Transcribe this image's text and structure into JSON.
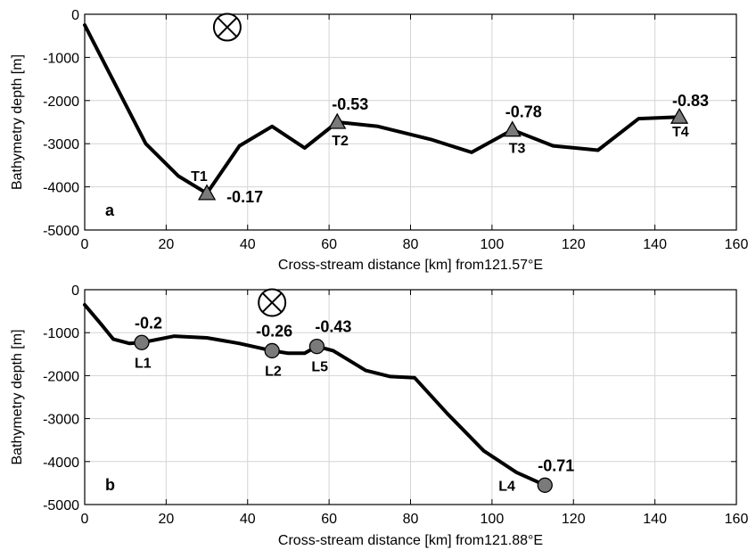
{
  "chart_data": [
    {
      "type": "line",
      "panel_label": "a",
      "xlabel": "Cross-stream distance [km] from121.57°E",
      "ylabel": "Bathymetry depth [m]",
      "xlim": [
        0,
        160
      ],
      "ylim": [
        -5000,
        0
      ],
      "xticks": [
        0,
        20,
        40,
        60,
        80,
        100,
        120,
        140,
        160
      ],
      "yticks": [
        0,
        -1000,
        -2000,
        -3000,
        -4000,
        -5000
      ],
      "grid": true,
      "flow_symbol_x_km": 35,
      "flow_symbol_y_m": -300,
      "line": {
        "x": [
          0,
          15,
          23,
          30,
          38,
          46,
          54,
          62,
          72,
          85,
          95,
          105,
          115,
          126,
          136,
          146
        ],
        "y": [
          -250,
          -3000,
          -3750,
          -4150,
          -3050,
          -2600,
          -3100,
          -2500,
          -2600,
          -2900,
          -3200,
          -2680,
          -3050,
          -3150,
          -2420,
          -2380
        ]
      },
      "stations": [
        {
          "name": "T1",
          "x": 30,
          "y": -4150,
          "value": "-0.17",
          "marker": "triangle"
        },
        {
          "name": "T2",
          "x": 62,
          "y": -2500,
          "value": "-0.53",
          "marker": "triangle"
        },
        {
          "name": "T3",
          "x": 105,
          "y": -2680,
          "value": "-0.78",
          "marker": "triangle"
        },
        {
          "name": "T4",
          "x": 146,
          "y": -2380,
          "value": "-0.83",
          "marker": "triangle"
        }
      ]
    },
    {
      "type": "line",
      "panel_label": "b",
      "xlabel": "Cross-stream distance [km] from121.88°E",
      "ylabel": "Bathymetry depth [m]",
      "xlim": [
        0,
        160
      ],
      "ylim": [
        -5000,
        0
      ],
      "xticks": [
        0,
        20,
        40,
        60,
        80,
        100,
        120,
        140,
        160
      ],
      "yticks": [
        0,
        -1000,
        -2000,
        -3000,
        -4000,
        -5000
      ],
      "grid": true,
      "flow_symbol_x_km": 46,
      "flow_symbol_y_m": -300,
      "line": {
        "x": [
          0,
          4,
          7,
          11,
          14,
          22,
          30,
          38,
          46,
          50,
          54,
          57,
          61,
          69,
          75,
          81,
          89,
          98,
          106,
          113
        ],
        "y": [
          -350,
          -800,
          -1150,
          -1250,
          -1230,
          -1080,
          -1120,
          -1250,
          -1420,
          -1480,
          -1480,
          -1320,
          -1420,
          -1880,
          -2020,
          -2050,
          -2880,
          -3750,
          -4250,
          -4550
        ]
      },
      "stations": [
        {
          "name": "L1",
          "x": 14,
          "y": -1230,
          "value": "-0.2",
          "marker": "circle"
        },
        {
          "name": "L2",
          "x": 46,
          "y": -1420,
          "value": "-0.26",
          "marker": "circle"
        },
        {
          "name": "L5",
          "x": 57,
          "y": -1320,
          "value": "-0.43",
          "marker": "circle"
        },
        {
          "name": "L4",
          "x": 113,
          "y": -4550,
          "value": "-0.71",
          "marker": "circle"
        }
      ]
    }
  ]
}
